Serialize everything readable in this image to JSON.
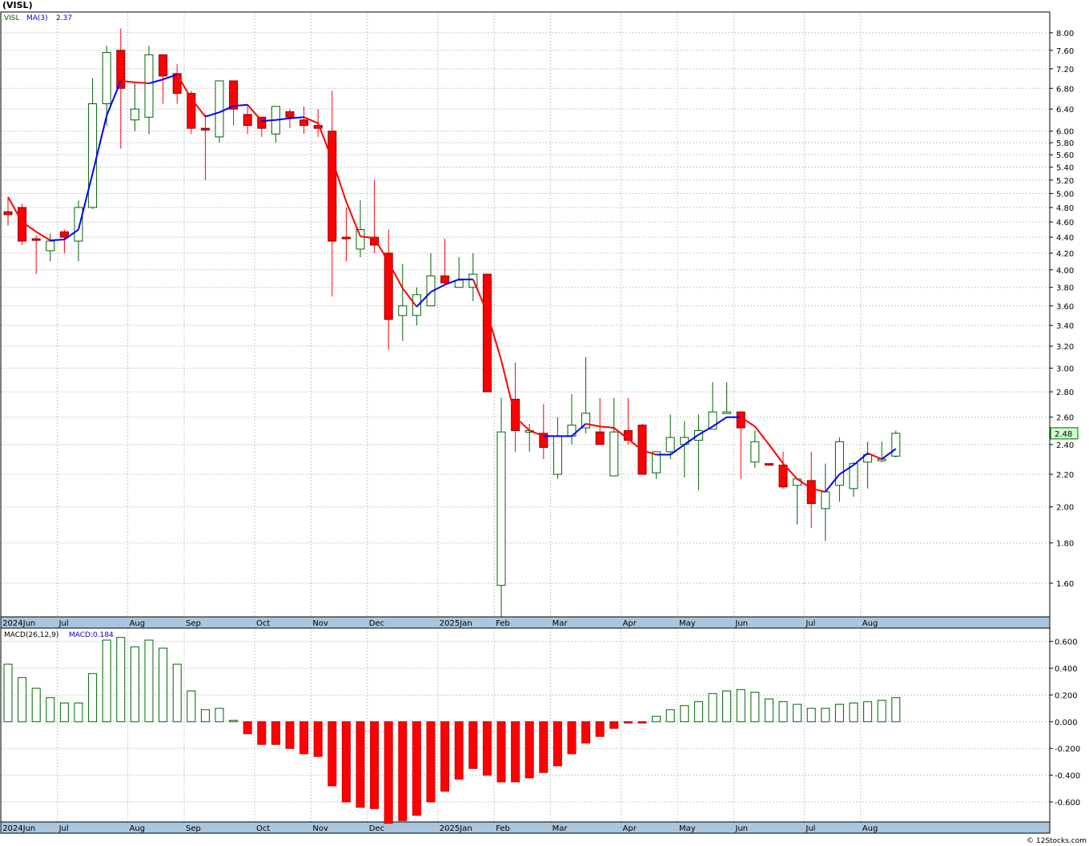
{
  "title": "(VISL)",
  "credit": "© 12Stocks.com",
  "colors": {
    "up": "#006400",
    "down": "#ff0000",
    "ma_up": "#0000ff",
    "ma_down": "#ff0000",
    "grid": "#c8c8c8",
    "axis_band": "#a9c6dd"
  },
  "x_axis_labels": [
    {
      "label": "2024Jun",
      "i": 0
    },
    {
      "label": "Jul",
      "i": 4
    },
    {
      "label": "Aug",
      "i": 9
    },
    {
      "label": "Sep",
      "i": 13
    },
    {
      "label": "Oct",
      "i": 18
    },
    {
      "label": "Nov",
      "i": 22
    },
    {
      "label": "Dec",
      "i": 26
    },
    {
      "label": "2025Jan",
      "i": 31
    },
    {
      "label": "Feb",
      "i": 35
    },
    {
      "label": "Mar",
      "i": 39
    },
    {
      "label": "Apr",
      "i": 44
    },
    {
      "label": "May",
      "i": 48
    },
    {
      "label": "Jun",
      "i": 52
    },
    {
      "label": "Jul",
      "i": 57
    },
    {
      "label": "Aug",
      "i": 61
    }
  ],
  "chart_data": [
    {
      "type": "candlestick",
      "legend": {
        "symbol": "VISL",
        "ma_label": "MA(3)",
        "ma_value": "2.37"
      },
      "last_price_label": "2.48",
      "y_scale": "log",
      "ylim": [
        1.45,
        8.5
      ],
      "y_ticks": [
        "1.60",
        "1.80",
        "2.00",
        "2.20",
        "2.40",
        "2.60",
        "2.80",
        "3.00",
        "3.20",
        "3.40",
        "3.60",
        "3.80",
        "4.00",
        "4.20",
        "4.40",
        "4.60",
        "4.80",
        "5.00",
        "5.20",
        "5.40",
        "5.60",
        "5.80",
        "6.00",
        "6.40",
        "6.80",
        "7.20",
        "7.60",
        "8.00"
      ],
      "candles": [
        {
          "o": 4.74,
          "h": 4.95,
          "l": 4.55,
          "c": 4.7
        },
        {
          "o": 4.8,
          "h": 4.85,
          "l": 4.3,
          "c": 4.35
        },
        {
          "o": 4.38,
          "h": 4.42,
          "l": 3.95,
          "c": 4.37
        },
        {
          "o": 4.23,
          "h": 4.45,
          "l": 4.1,
          "c": 4.35
        },
        {
          "o": 4.47,
          "h": 4.5,
          "l": 4.2,
          "c": 4.4
        },
        {
          "o": 4.35,
          "h": 4.9,
          "l": 4.1,
          "c": 4.8
        },
        {
          "o": 4.8,
          "h": 7.0,
          "l": 4.78,
          "c": 6.5
        },
        {
          "o": 6.5,
          "h": 7.7,
          "l": 6.1,
          "c": 7.55
        },
        {
          "o": 7.6,
          "h": 8.1,
          "l": 5.7,
          "c": 6.8
        },
        {
          "o": 6.2,
          "h": 6.9,
          "l": 6.0,
          "c": 6.4
        },
        {
          "o": 6.25,
          "h": 7.7,
          "l": 5.95,
          "c": 7.5
        },
        {
          "o": 7.5,
          "h": 7.5,
          "l": 6.5,
          "c": 7.05
        },
        {
          "o": 7.1,
          "h": 7.3,
          "l": 6.5,
          "c": 6.7
        },
        {
          "o": 6.7,
          "h": 6.75,
          "l": 5.95,
          "c": 6.05
        },
        {
          "o": 6.05,
          "h": 6.3,
          "l": 5.2,
          "c": 6.02
        },
        {
          "o": 5.9,
          "h": 6.9,
          "l": 5.8,
          "c": 6.95
        },
        {
          "o": 6.95,
          "h": 6.95,
          "l": 6.1,
          "c": 6.4
        },
        {
          "o": 6.3,
          "h": 6.5,
          "l": 5.95,
          "c": 6.1
        },
        {
          "o": 6.25,
          "h": 6.25,
          "l": 5.9,
          "c": 6.05
        },
        {
          "o": 5.95,
          "h": 6.45,
          "l": 5.8,
          "c": 6.45
        },
        {
          "o": 6.35,
          "h": 6.4,
          "l": 6.05,
          "c": 6.25
        },
        {
          "o": 6.2,
          "h": 6.45,
          "l": 5.95,
          "c": 6.1
        },
        {
          "o": 6.1,
          "h": 6.4,
          "l": 5.9,
          "c": 6.05
        },
        {
          "o": 6.0,
          "h": 6.75,
          "l": 3.7,
          "c": 4.35
        },
        {
          "o": 4.4,
          "h": 4.8,
          "l": 4.1,
          "c": 4.38
        },
        {
          "o": 4.25,
          "h": 4.9,
          "l": 4.15,
          "c": 4.5
        },
        {
          "o": 4.4,
          "h": 5.2,
          "l": 4.2,
          "c": 4.3
        },
        {
          "o": 4.2,
          "h": 4.5,
          "l": 3.17,
          "c": 3.46
        },
        {
          "o": 3.5,
          "h": 4.07,
          "l": 3.25,
          "c": 3.6
        },
        {
          "o": 3.5,
          "h": 3.8,
          "l": 3.4,
          "c": 3.72
        },
        {
          "o": 3.6,
          "h": 4.2,
          "l": 3.6,
          "c": 3.93
        },
        {
          "o": 3.93,
          "h": 4.38,
          "l": 3.83,
          "c": 3.85
        },
        {
          "o": 3.8,
          "h": 4.15,
          "l": 3.8,
          "c": 3.88
        },
        {
          "o": 3.8,
          "h": 4.2,
          "l": 3.65,
          "c": 3.95
        },
        {
          "o": 3.95,
          "h": 3.95,
          "l": 2.8,
          "c": 2.8
        },
        {
          "o": 1.59,
          "h": 2.75,
          "l": 1.45,
          "c": 2.49
        },
        {
          "o": 2.74,
          "h": 3.05,
          "l": 2.35,
          "c": 2.5
        },
        {
          "o": 2.5,
          "h": 2.55,
          "l": 2.35,
          "c": 2.5
        },
        {
          "o": 2.48,
          "h": 2.7,
          "l": 2.3,
          "c": 2.38
        },
        {
          "o": 2.2,
          "h": 2.6,
          "l": 2.17,
          "c": 2.46
        },
        {
          "o": 2.46,
          "h": 2.78,
          "l": 2.4,
          "c": 2.54
        },
        {
          "o": 2.52,
          "h": 3.1,
          "l": 2.48,
          "c": 2.63
        },
        {
          "o": 2.49,
          "h": 2.75,
          "l": 2.4,
          "c": 2.4
        },
        {
          "o": 2.19,
          "h": 2.75,
          "l": 2.19,
          "c": 2.49
        },
        {
          "o": 2.5,
          "h": 2.75,
          "l": 2.4,
          "c": 2.43
        },
        {
          "o": 2.54,
          "h": 2.55,
          "l": 2.2,
          "c": 2.2
        },
        {
          "o": 2.21,
          "h": 2.35,
          "l": 2.17,
          "c": 2.35
        },
        {
          "o": 2.35,
          "h": 2.62,
          "l": 2.3,
          "c": 2.45
        },
        {
          "o": 2.4,
          "h": 2.57,
          "l": 2.18,
          "c": 2.45
        },
        {
          "o": 2.43,
          "h": 2.62,
          "l": 2.1,
          "c": 2.5
        },
        {
          "o": 2.51,
          "h": 2.88,
          "l": 2.51,
          "c": 2.64
        },
        {
          "o": 2.64,
          "h": 2.88,
          "l": 2.64,
          "c": 2.64
        },
        {
          "o": 2.64,
          "h": 2.64,
          "l": 2.17,
          "c": 2.52
        },
        {
          "o": 2.28,
          "h": 2.5,
          "l": 2.24,
          "c": 2.42
        },
        {
          "o": 2.27,
          "h": 2.27,
          "l": 2.26,
          "c": 2.26
        },
        {
          "o": 2.26,
          "h": 2.35,
          "l": 2.11,
          "c": 2.12
        },
        {
          "o": 2.13,
          "h": 2.15,
          "l": 1.9,
          "c": 2.17
        },
        {
          "o": 2.16,
          "h": 2.35,
          "l": 1.88,
          "c": 2.02
        },
        {
          "o": 1.99,
          "h": 2.27,
          "l": 1.81,
          "c": 2.09
        },
        {
          "o": 2.13,
          "h": 2.45,
          "l": 2.03,
          "c": 2.42
        },
        {
          "o": 2.11,
          "h": 2.28,
          "l": 2.06,
          "c": 2.27
        },
        {
          "o": 2.28,
          "h": 2.42,
          "l": 2.11,
          "c": 2.33
        },
        {
          "o": 2.3,
          "h": 2.42,
          "l": 2.28,
          "c": 2.3
        },
        {
          "o": 2.32,
          "h": 2.5,
          "l": 2.31,
          "c": 2.48
        }
      ],
      "ma": [
        4.95,
        4.6,
        4.47,
        4.36,
        4.37,
        4.5,
        5.3,
        6.28,
        6.95,
        6.92,
        6.9,
        6.98,
        7.08,
        6.6,
        6.26,
        6.34,
        6.46,
        6.48,
        6.18,
        6.2,
        6.23,
        6.25,
        6.14,
        5.52,
        4.88,
        4.41,
        4.39,
        4.09,
        3.79,
        3.59,
        3.75,
        3.83,
        3.89,
        3.89,
        3.53,
        3.07,
        2.6,
        2.5,
        2.46,
        2.46,
        2.46,
        2.55,
        2.53,
        2.52,
        2.44,
        2.36,
        2.33,
        2.33,
        2.4,
        2.47,
        2.53,
        2.6,
        2.6,
        2.53,
        2.4,
        2.27,
        2.17,
        2.11,
        2.09,
        2.2,
        2.26,
        2.34,
        2.3,
        2.37
      ]
    },
    {
      "type": "bar",
      "legend": {
        "label": "MACD(26,12,9)",
        "value_label": "MACD:0.184"
      },
      "ylim": [
        -0.75,
        0.7
      ],
      "y_ticks": [
        "0.600",
        "0.400",
        "0.200",
        "0.000",
        "-0.200",
        "-0.400",
        "-0.600"
      ],
      "values": [
        0.43,
        0.33,
        0.25,
        0.18,
        0.14,
        0.14,
        0.36,
        0.61,
        0.63,
        0.56,
        0.61,
        0.55,
        0.43,
        0.23,
        0.09,
        0.1,
        0.01,
        -0.09,
        -0.17,
        -0.17,
        -0.2,
        -0.24,
        -0.26,
        -0.48,
        -0.6,
        -0.64,
        -0.65,
        -0.76,
        -0.74,
        -0.7,
        -0.6,
        -0.52,
        -0.43,
        -0.35,
        -0.4,
        -0.45,
        -0.45,
        -0.42,
        -0.38,
        -0.33,
        -0.24,
        -0.16,
        -0.11,
        -0.05,
        -0.01,
        -0.01,
        0.04,
        0.09,
        0.12,
        0.15,
        0.21,
        0.23,
        0.24,
        0.22,
        0.17,
        0.15,
        0.13,
        0.1,
        0.1,
        0.13,
        0.14,
        0.15,
        0.16,
        0.18
      ]
    }
  ]
}
